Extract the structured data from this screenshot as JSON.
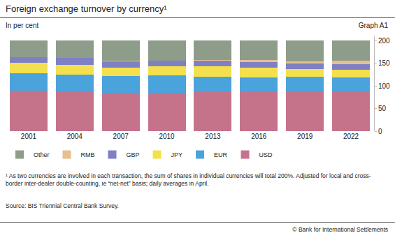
{
  "chart_data": {
    "type": "bar",
    "title": "Foreign exchange turnover by currency¹",
    "subtitle": "In per cent",
    "annotations": [
      "Graph A1",
      "¹ As two currencies are involved in each transaction, the sum of shares in individual currencies will total 200%. Adjusted for local and cross-border inter-dealer double-counting, ie “net-net” basis; daily averages in April.",
      "Source: BIS Triennial Central Bank Survey.",
      "© Bank for International Settlements"
    ],
    "categories": [
      "2001",
      "2004",
      "2007",
      "2010",
      "2013",
      "2016",
      "2019",
      "2022"
    ],
    "series": [
      {
        "name": "USD",
        "color": "#c5738b",
        "values": [
          89.9,
          88.0,
          85.6,
          84.9,
          87.0,
          87.6,
          88.3,
          88.5
        ]
      },
      {
        "name": "EUR",
        "color": "#4ba3dc",
        "values": [
          37.9,
          37.4,
          37.0,
          39.0,
          33.4,
          31.4,
          32.3,
          30.5
        ]
      },
      {
        "name": "JPY",
        "color": "#f4e04d",
        "values": [
          23.5,
          20.8,
          17.2,
          19.0,
          23.0,
          21.6,
          16.8,
          16.7
        ]
      },
      {
        "name": "GBP",
        "color": "#7f80c4",
        "values": [
          13.0,
          16.5,
          14.9,
          12.9,
          11.8,
          12.8,
          12.8,
          12.9
        ]
      },
      {
        "name": "RMB",
        "color": "#e6c08e",
        "values": [
          0.0,
          0.1,
          0.5,
          0.9,
          2.2,
          4.0,
          4.3,
          7.0
        ]
      },
      {
        "name": "Other",
        "color": "#8e9c8a",
        "values": [
          35.7,
          37.2,
          44.8,
          43.3,
          42.6,
          42.6,
          45.5,
          44.4
        ]
      }
    ],
    "ylim": [
      0,
      210
    ],
    "yticks": [
      0,
      50,
      100,
      150,
      200
    ],
    "stacked": true,
    "legend": "bottom",
    "grid": false
  }
}
